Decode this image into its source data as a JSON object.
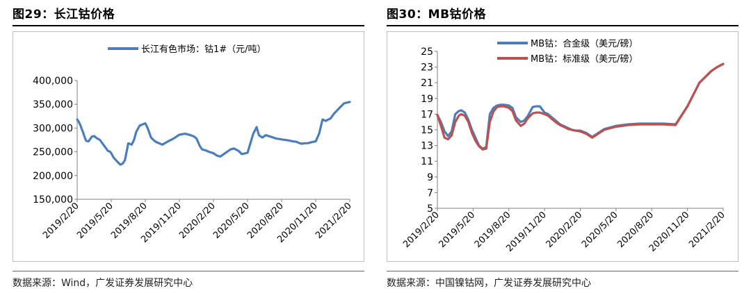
{
  "left": {
    "title": "图29：长江钴价格",
    "source": "数据来源：Wind，广发证券发展研究中心",
    "chart_data": {
      "type": "line",
      "ylim": [
        150000,
        400000
      ],
      "yticks": [
        "150,000",
        "200,000",
        "250,000",
        "300,000",
        "350,000",
        "400,000"
      ],
      "ytick_values": [
        150000,
        200000,
        250000,
        300000,
        350000,
        400000
      ],
      "xticks": [
        "2019/2/20",
        "2019/5/20",
        "2019/8/20",
        "2019/11/20",
        "2020/2/20",
        "2020/5/20",
        "2020/8/20",
        "2020/11/20",
        "2021/2/20"
      ],
      "grid": false,
      "legend_position": "top",
      "series": [
        {
          "name": "长江有色市场：钴1#（元/吨）",
          "color": "#4a7ebb",
          "x": [
            0,
            0.1,
            0.2,
            0.3,
            0.4,
            0.5,
            0.6,
            0.7,
            0.8,
            1,
            1.3,
            1.5,
            1.7,
            2,
            2.3,
            2.7,
            2.9,
            3,
            3.2,
            3.5,
            3.8,
            4,
            4.2,
            4.5,
            4.8,
            5,
            5.2,
            5.5,
            5.8,
            6,
            6.2,
            6.5,
            6.8,
            7,
            7.5,
            8,
            8.5,
            9,
            9.5,
            10,
            10.3,
            10.5,
            10.8,
            11,
            11.3,
            11.6,
            12,
            12.3,
            12.6,
            12.9,
            13.2,
            13.5,
            13.8,
            14.2,
            14.5,
            15,
            15.5,
            15.8,
            16,
            16.3,
            16.6,
            17,
            17.5,
            18,
            18.3,
            18.6,
            18.8,
            19,
            19.3,
            19.6,
            19.8,
            20,
            20.3,
            20.6,
            21,
            21.3,
            21.6,
            21.9,
            22.1,
            22.3,
            22.6,
            23,
            23.5,
            24
          ],
          "values": [
            318000,
            315000,
            310000,
            305000,
            298000,
            292000,
            285000,
            278000,
            273000,
            272000,
            282000,
            283000,
            279000,
            275000,
            265000,
            252000,
            250000,
            247000,
            238000,
            230000,
            223000,
            225000,
            232000,
            268000,
            265000,
            275000,
            292000,
            305000,
            308000,
            310000,
            300000,
            280000,
            273000,
            270000,
            265000,
            272000,
            278000,
            286000,
            288000,
            285000,
            282000,
            278000,
            262000,
            255000,
            253000,
            250000,
            247000,
            242000,
            240000,
            245000,
            250000,
            255000,
            257000,
            252000,
            245000,
            248000,
            288000,
            302000,
            285000,
            280000,
            285000,
            282000,
            278000,
            276000,
            275000,
            274000,
            273000,
            272000,
            271000,
            268000,
            267000,
            268000,
            268000,
            270000,
            272000,
            288000,
            318000,
            315000,
            318000,
            320000,
            330000,
            340000,
            352000,
            355000
          ]
        }
      ]
    }
  },
  "right": {
    "title": "图30：MB钴价格",
    "source": "数据来源：中国镍钴网，广发证券发展研究中心",
    "chart_data": {
      "type": "line",
      "ylim": [
        5,
        25
      ],
      "yticks": [
        "5",
        "7",
        "9",
        "11",
        "13",
        "15",
        "17",
        "19",
        "21",
        "23",
        "25"
      ],
      "ytick_values": [
        5,
        7,
        9,
        11,
        13,
        15,
        17,
        19,
        21,
        23,
        25
      ],
      "xticks": [
        "2019/2/20",
        "2019/5/20",
        "2019/8/20",
        "2019/11/20",
        "2020/2/20",
        "2020/5/20",
        "2020/8/20",
        "2020/11/20",
        "2021/2/20"
      ],
      "grid": false,
      "legend_position": "top",
      "series": [
        {
          "name": "MB钴：合金级（美元/磅）",
          "color": "#4a7ebb",
          "x": [
            0,
            0.3,
            0.6,
            0.9,
            1.2,
            1.5,
            1.8,
            2,
            2.3,
            2.6,
            2.9,
            3.2,
            3.5,
            3.8,
            4.1,
            4.4,
            4.7,
            5,
            5.3,
            5.6,
            6,
            6.3,
            6.6,
            7,
            7.3,
            7.6,
            8,
            8.3,
            8.6,
            9,
            9.3,
            9.6,
            10,
            10.3,
            10.6,
            11,
            11.3,
            11.6,
            12,
            12.5,
            13,
            14,
            15,
            16,
            17,
            18,
            19,
            20,
            21,
            22,
            23,
            23.5,
            24
          ],
          "values": [
            16.9,
            16.0,
            14.8,
            14.2,
            14.8,
            17.0,
            17.4,
            17.5,
            17.2,
            16.3,
            15.0,
            14.0,
            13.0,
            12.6,
            12.8,
            17.0,
            17.8,
            18.1,
            18.2,
            18.2,
            18.1,
            17.8,
            16.6,
            16.0,
            16.2,
            16.8,
            17.9,
            18.0,
            18.0,
            17.2,
            17.0,
            16.6,
            16.1,
            15.7,
            15.5,
            15.2,
            15.0,
            14.9,
            14.9,
            14.6,
            14.1,
            15.1,
            15.5,
            15.7,
            15.8,
            15.8,
            15.8,
            15.7,
            18.0,
            21.0,
            22.5,
            23.0,
            23.4
          ]
        },
        {
          "name": "MB钴：标准级（美元/磅）",
          "color": "#c0504d",
          "x": [
            0,
            0.3,
            0.6,
            0.9,
            1.2,
            1.5,
            1.8,
            2,
            2.3,
            2.6,
            2.9,
            3.2,
            3.5,
            3.8,
            4.1,
            4.4,
            4.7,
            5,
            5.3,
            5.6,
            6,
            6.3,
            6.6,
            7,
            7.3,
            7.6,
            8,
            8.3,
            8.6,
            9,
            9.3,
            9.6,
            10,
            10.3,
            10.6,
            11,
            11.3,
            11.6,
            12,
            12.5,
            13,
            14,
            15,
            16,
            17,
            18,
            19,
            20,
            21,
            22,
            23,
            23.5,
            24
          ],
          "values": [
            16.9,
            15.5,
            14.0,
            13.8,
            14.3,
            16.0,
            16.8,
            17.0,
            16.8,
            16.0,
            14.6,
            13.6,
            12.9,
            12.5,
            12.6,
            16.0,
            17.3,
            17.9,
            18.0,
            18.0,
            17.8,
            17.4,
            16.2,
            15.5,
            15.8,
            16.5,
            17.1,
            17.2,
            17.2,
            17.0,
            16.8,
            16.4,
            15.9,
            15.6,
            15.4,
            15.1,
            15.0,
            14.9,
            14.8,
            14.5,
            14.0,
            15.0,
            15.4,
            15.6,
            15.7,
            15.7,
            15.7,
            15.6,
            18.0,
            21.0,
            22.5,
            23.0,
            23.4
          ]
        }
      ]
    }
  }
}
